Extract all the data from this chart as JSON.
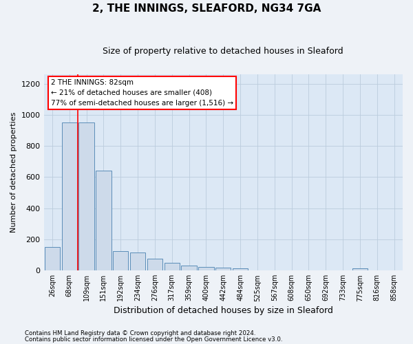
{
  "title": "2, THE INNINGS, SLEAFORD, NG34 7GA",
  "subtitle": "Size of property relative to detached houses in Sleaford",
  "xlabel": "Distribution of detached houses by size in Sleaford",
  "ylabel": "Number of detached properties",
  "categories": [
    "26sqm",
    "68sqm",
    "109sqm",
    "151sqm",
    "192sqm",
    "234sqm",
    "276sqm",
    "317sqm",
    "359sqm",
    "400sqm",
    "442sqm",
    "484sqm",
    "525sqm",
    "567sqm",
    "608sqm",
    "650sqm",
    "692sqm",
    "733sqm",
    "775sqm",
    "816sqm",
    "858sqm"
  ],
  "values": [
    150,
    950,
    950,
    640,
    125,
    115,
    75,
    50,
    30,
    22,
    20,
    15,
    0,
    0,
    0,
    0,
    0,
    0,
    12,
    0,
    0
  ],
  "bar_color": "#cddaea",
  "bar_edgecolor": "#5b8db8",
  "red_line_index": 1.5,
  "ylim": [
    0,
    1260
  ],
  "yticks": [
    0,
    200,
    400,
    600,
    800,
    1000,
    1200
  ],
  "annotation_title": "2 THE INNINGS: 82sqm",
  "annotation_line1": "← 21% of detached houses are smaller (408)",
  "annotation_line2": "77% of semi-detached houses are larger (1,516) →",
  "footer_line1": "Contains HM Land Registry data © Crown copyright and database right 2024.",
  "footer_line2": "Contains public sector information licensed under the Open Government Licence v3.0.",
  "background_color": "#eef2f7",
  "plot_bg_color": "#dce8f5"
}
